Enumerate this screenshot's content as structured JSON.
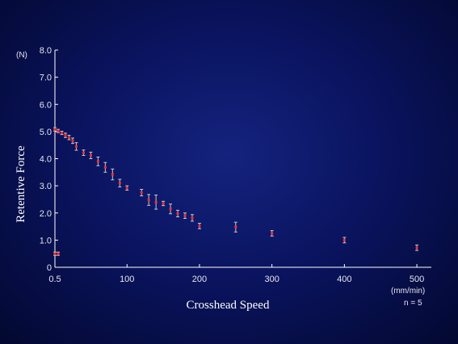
{
  "chart_data": {
    "type": "scatter",
    "title": "",
    "xlabel": "Crosshead Speed",
    "ylabel": "Retentive Force",
    "y_unit": "(N)",
    "x_unit": "(mm/min)",
    "note": "n = 5",
    "xlim": [
      0.5,
      520
    ],
    "ylim": [
      0,
      8.0
    ],
    "x_ticks": [
      0.5,
      100,
      200,
      300,
      400,
      500
    ],
    "x_tick_labels": [
      "0.5",
      "100",
      "200",
      "300",
      "400",
      "500"
    ],
    "y_ticks": [
      0,
      1,
      2,
      3,
      4,
      5,
      6,
      7,
      8
    ],
    "y_tick_labels": [
      "0",
      "1.0",
      "2.0",
      "3.0",
      "4.0",
      "5.0",
      "6.0",
      "7.0",
      "8.0"
    ],
    "grid": false,
    "error_bars": true,
    "marker_color": "#ff2a2a",
    "errorbar_color": "#c8c8d2",
    "axis_color": "#ffffff",
    "series": [
      {
        "x": [
          0.5,
          5,
          10,
          15,
          20,
          25,
          30,
          40,
          50,
          60,
          70,
          80,
          90,
          100,
          120,
          130,
          140,
          150,
          160,
          170,
          180,
          190,
          200,
          250,
          300,
          400,
          500,
          0.5,
          5
        ],
        "y": [
          5.08,
          5.02,
          4.95,
          4.86,
          4.78,
          4.66,
          4.45,
          4.22,
          4.12,
          3.9,
          3.68,
          3.42,
          3.1,
          2.92,
          2.75,
          2.48,
          2.4,
          2.35,
          2.15,
          1.98,
          1.9,
          1.82,
          1.52,
          1.48,
          1.25,
          1.0,
          0.72,
          0.5,
          0.5
        ],
        "yerr": [
          0.06,
          0.06,
          0.06,
          0.08,
          0.08,
          0.1,
          0.14,
          0.1,
          0.12,
          0.16,
          0.18,
          0.2,
          0.14,
          0.08,
          0.12,
          0.2,
          0.26,
          0.08,
          0.18,
          0.12,
          0.1,
          0.12,
          0.1,
          0.18,
          0.1,
          0.1,
          0.1,
          0.06,
          0.06
        ]
      }
    ]
  }
}
